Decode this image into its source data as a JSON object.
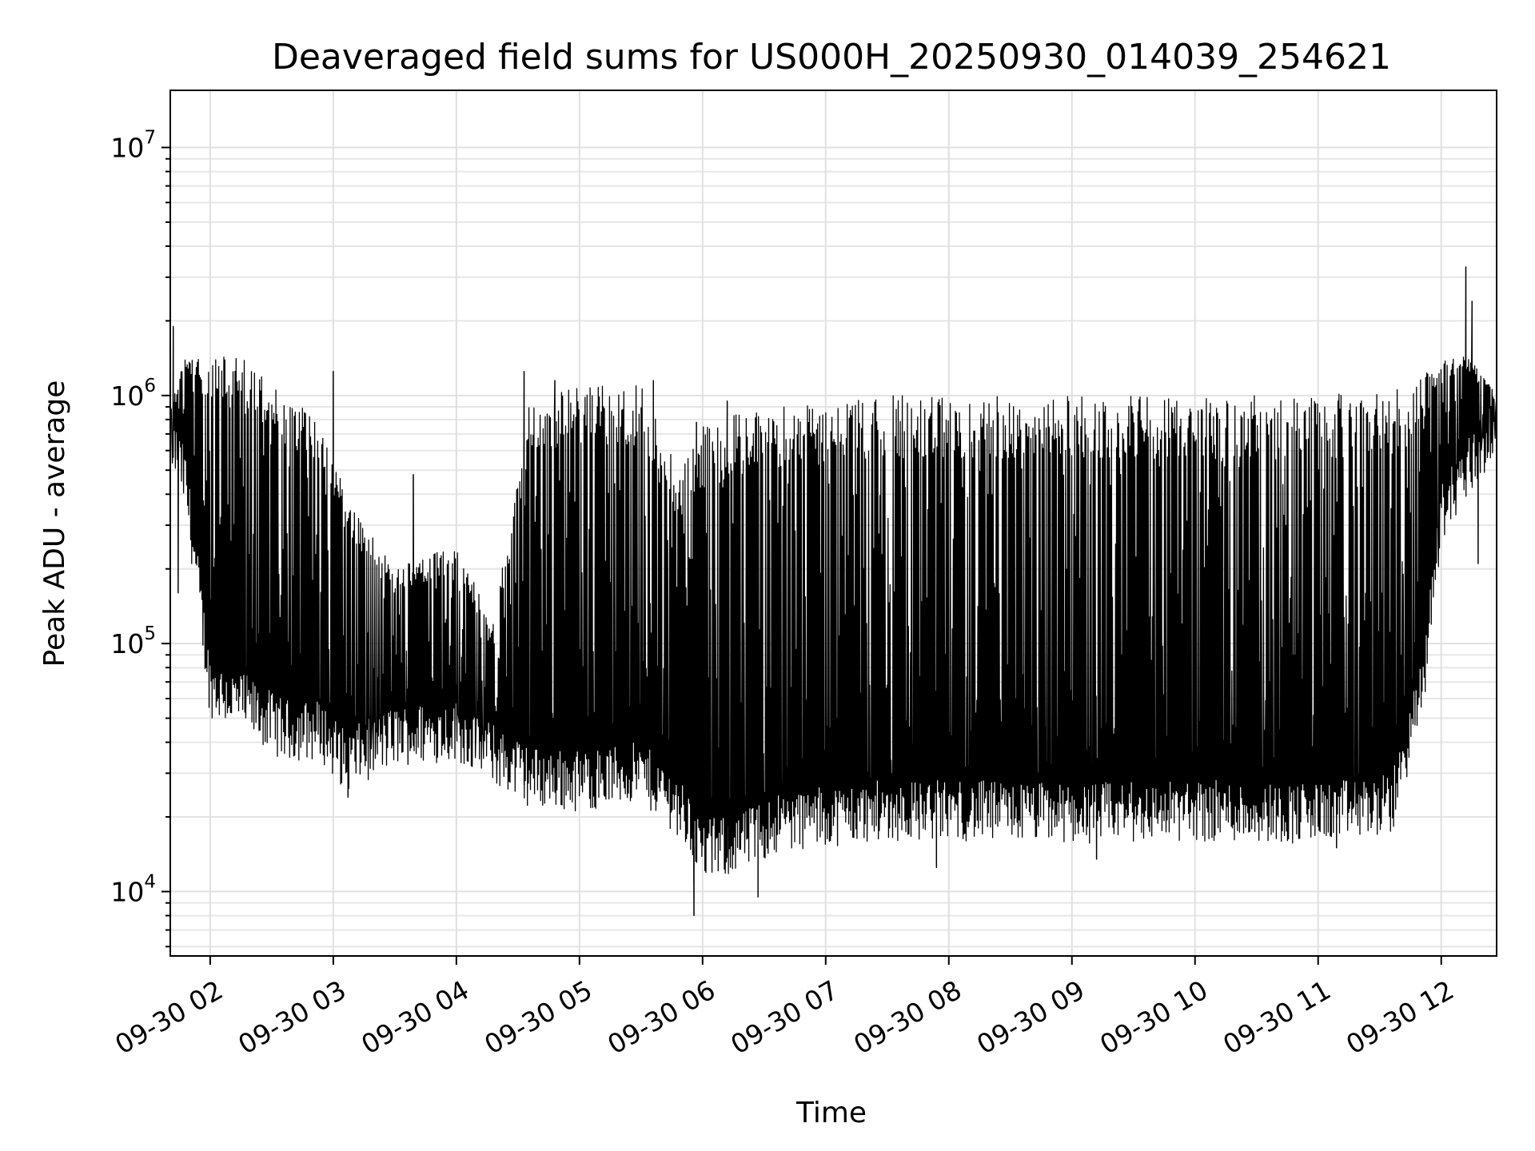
{
  "chart_data": {
    "type": "line",
    "title": "Deaveraged field sums for US000H_20250930_014039_254621",
    "xlabel": "Time",
    "ylabel": "Peak ADU - average",
    "yscale": "log",
    "ylim": [
      5500,
      17000000
    ],
    "xlim_hours": [
      1.676,
      12.45
    ],
    "grid": true,
    "x_ticks": [
      {
        "hour": 2,
        "label": "09-30 02"
      },
      {
        "hour": 3,
        "label": "09-30 03"
      },
      {
        "hour": 4,
        "label": "09-30 04"
      },
      {
        "hour": 5,
        "label": "09-30 05"
      },
      {
        "hour": 6,
        "label": "09-30 06"
      },
      {
        "hour": 7,
        "label": "09-30 07"
      },
      {
        "hour": 8,
        "label": "09-30 08"
      },
      {
        "hour": 9,
        "label": "09-30 09"
      },
      {
        "hour": 10,
        "label": "09-30 10"
      },
      {
        "hour": 11,
        "label": "09-30 11"
      },
      {
        "hour": 12,
        "label": "09-30 12"
      }
    ],
    "y_ticks": [
      {
        "value": 10000,
        "base": "10",
        "exp": "4"
      },
      {
        "value": 100000,
        "base": "10",
        "exp": "5"
      },
      {
        "value": 1000000,
        "base": "10",
        "exp": "6"
      },
      {
        "value": 10000000,
        "base": "10",
        "exp": "7"
      }
    ],
    "series": [
      {
        "name": "field sums",
        "color": "#000000",
        "lower_envelope": [
          [
            1.68,
            600000
          ],
          [
            1.8,
            400000
          ],
          [
            2.0,
            60000
          ],
          [
            2.3,
            50000
          ],
          [
            2.6,
            40000
          ],
          [
            2.9,
            40000
          ],
          [
            3.1,
            30000
          ],
          [
            3.5,
            38000
          ],
          [
            4.0,
            40000
          ],
          [
            4.3,
            32000
          ],
          [
            4.6,
            26000
          ],
          [
            5.0,
            25000
          ],
          [
            5.5,
            27000
          ],
          [
            5.8,
            20000
          ],
          [
            6.0,
            13000
          ],
          [
            6.3,
            14000
          ],
          [
            6.6,
            17000
          ],
          [
            7.0,
            18000
          ],
          [
            7.5,
            19000
          ],
          [
            8.0,
            19000
          ],
          [
            9.0,
            18500
          ],
          [
            10.0,
            19000
          ],
          [
            11.0,
            18500
          ],
          [
            11.6,
            20000
          ],
          [
            11.85,
            60000
          ],
          [
            12.0,
            300000
          ],
          [
            12.2,
            450000
          ],
          [
            12.45,
            650000
          ]
        ],
        "upper_envelope": [
          [
            1.68,
            900000
          ],
          [
            1.8,
            1500000
          ],
          [
            2.0,
            1500000
          ],
          [
            2.3,
            1400000
          ],
          [
            2.6,
            1000000
          ],
          [
            2.9,
            800000
          ],
          [
            3.1,
            400000
          ],
          [
            3.5,
            200000
          ],
          [
            4.0,
            250000
          ],
          [
            4.3,
            120000
          ],
          [
            4.6,
            1000000
          ],
          [
            5.0,
            1100000
          ],
          [
            5.5,
            1100000
          ],
          [
            5.8,
            500000
          ],
          [
            6.0,
            750000
          ],
          [
            6.3,
            850000
          ],
          [
            6.6,
            900000
          ],
          [
            7.0,
            950000
          ],
          [
            7.5,
            1000000
          ],
          [
            8.0,
            1000000
          ],
          [
            9.0,
            1000000
          ],
          [
            10.0,
            1000000
          ],
          [
            11.0,
            1000000
          ],
          [
            11.6,
            1050000
          ],
          [
            11.85,
            1200000
          ],
          [
            12.0,
            1400000
          ],
          [
            12.2,
            1500000
          ],
          [
            12.45,
            1000000
          ]
        ],
        "spikes": [
          {
            "hour": 1.7,
            "value": 1900000
          },
          {
            "hour": 3.0,
            "value": 1250000
          },
          {
            "hour": 3.65,
            "value": 480000
          },
          {
            "hour": 4.55,
            "value": 1250000
          },
          {
            "hour": 4.8,
            "value": 1150000
          },
          {
            "hour": 5.6,
            "value": 1150000
          },
          {
            "hour": 5.95,
            "value": 780000
          },
          {
            "hour": 6.2,
            "value": 950000
          },
          {
            "hour": 12.2,
            "value": 3300000
          },
          {
            "hour": 12.25,
            "value": 2400000
          }
        ],
        "dips": [
          {
            "hour": 1.74,
            "value": 160000
          },
          {
            "hour": 3.12,
            "value": 24000
          },
          {
            "hour": 5.93,
            "value": 8000
          },
          {
            "hour": 6.45,
            "value": 9500
          },
          {
            "hour": 7.9,
            "value": 12500
          },
          {
            "hour": 9.2,
            "value": 13500
          },
          {
            "hour": 11.15,
            "value": 15000
          },
          {
            "hour": 12.3,
            "value": 210000
          }
        ]
      }
    ]
  }
}
